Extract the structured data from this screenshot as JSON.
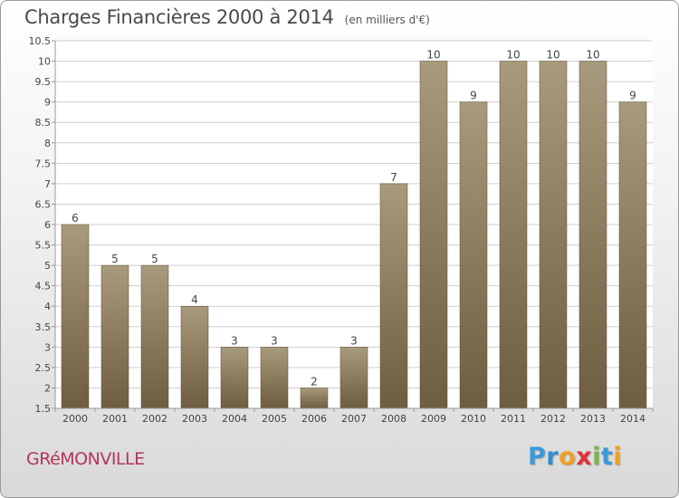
{
  "header": {
    "title": "Charges Financières 2000 à 2014",
    "subtitle": "(en milliers d'€)"
  },
  "footer": {
    "commune": "GRéMONVILLE",
    "logo_letters": [
      "P",
      "r",
      "o",
      "x",
      "i",
      "t",
      "i"
    ],
    "logo_colors": [
      "#3a9ad9",
      "#2f8fd0",
      "#f0a020",
      "#e0303a",
      "#7ab648",
      "#3a9ad9",
      "#f0a020"
    ]
  },
  "colors": {
    "bar_top": "#a89a7c",
    "bar_bottom": "#6e5d40",
    "grid": "#cfcfcf",
    "axis": "#999999",
    "text": "#444444"
  },
  "chart_data": {
    "type": "bar",
    "title": "Charges Financières 2000 à 2014",
    "subtitle": "(en milliers d'€)",
    "xlabel": "",
    "ylabel": "",
    "categories": [
      "2000",
      "2001",
      "2002",
      "2003",
      "2004",
      "2005",
      "2006",
      "2007",
      "2008",
      "2009",
      "2010",
      "2011",
      "2012",
      "2013",
      "2014"
    ],
    "values": [
      6,
      5,
      5,
      4,
      3,
      3,
      2,
      3,
      7,
      10,
      9,
      10,
      10,
      10,
      9
    ],
    "data_labels": [
      "6",
      "5",
      "5",
      "4",
      "3",
      "3",
      "2",
      "3",
      "7",
      "10",
      "9",
      "10",
      "10",
      "10",
      "9"
    ],
    "ylim": [
      1.5,
      10.5
    ],
    "yticks": [
      "1.5",
      "2",
      "2.5",
      "3",
      "3.5",
      "4",
      "4.5",
      "5",
      "5.5",
      "6",
      "6.5",
      "7",
      "7.5",
      "8",
      "8.5",
      "9",
      "9.5",
      "10",
      "10.5"
    ],
    "grid": true,
    "legend": "none"
  }
}
